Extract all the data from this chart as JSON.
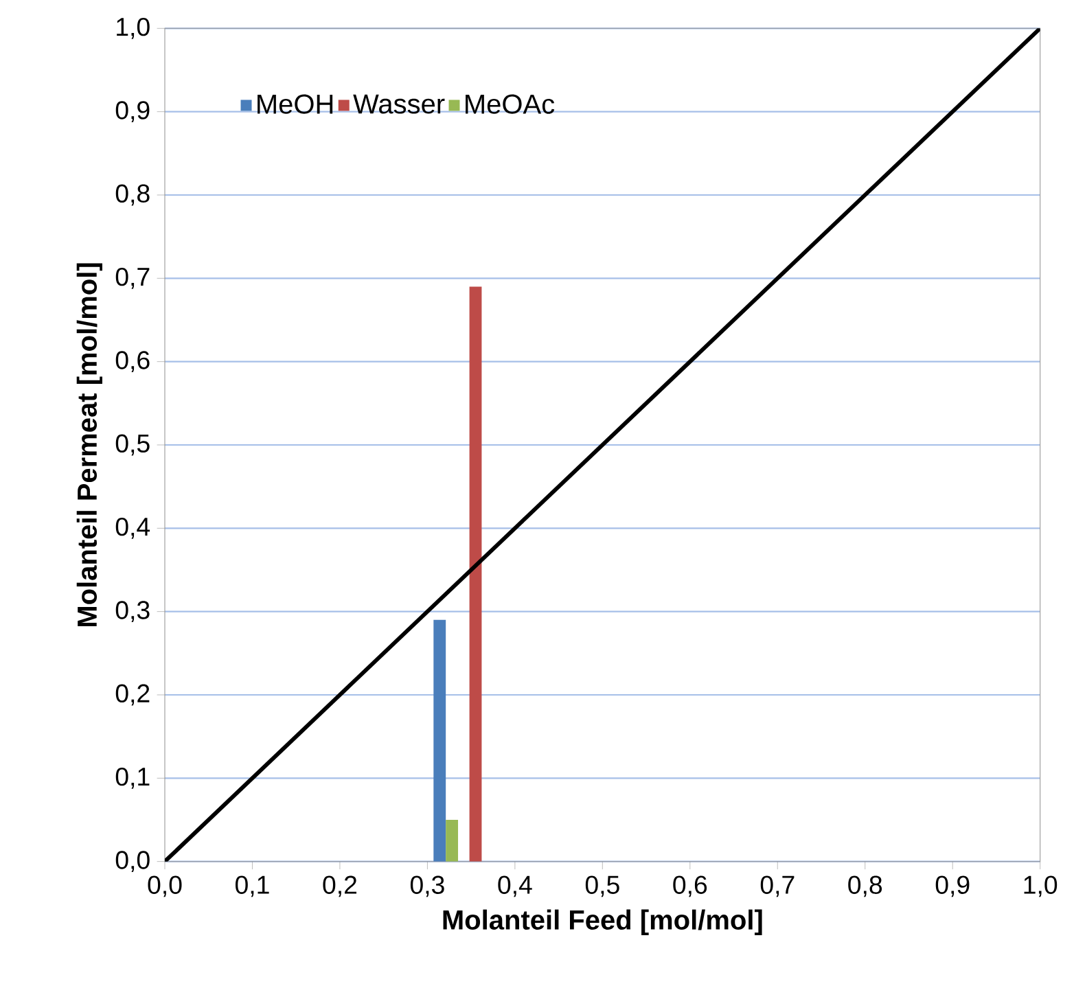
{
  "chart_data": {
    "type": "bar",
    "xlabel": "Molanteil Feed [mol/mol]",
    "ylabel": "Molanteil Permeat [mol/mol]",
    "xlim": [
      0,
      1
    ],
    "ylim": [
      0,
      1
    ],
    "xticks": [
      {
        "value": 0,
        "label": "0,0"
      },
      {
        "value": 0.1,
        "label": "0,1"
      },
      {
        "value": 0.2,
        "label": "0,2"
      },
      {
        "value": 0.3,
        "label": "0,3"
      },
      {
        "value": 0.4,
        "label": "0,4"
      },
      {
        "value": 0.5,
        "label": "0,5"
      },
      {
        "value": 0.6,
        "label": "0,6"
      },
      {
        "value": 0.7,
        "label": "0,7"
      },
      {
        "value": 0.8,
        "label": "0,8"
      },
      {
        "value": 0.9,
        "label": "0,9"
      },
      {
        "value": 1,
        "label": "1,0"
      }
    ],
    "yticks": [
      {
        "value": 0,
        "label": "0,0"
      },
      {
        "value": 0.1,
        "label": "0,1"
      },
      {
        "value": 0.2,
        "label": "0,2"
      },
      {
        "value": 0.3,
        "label": "0,3"
      },
      {
        "value": 0.4,
        "label": "0,4"
      },
      {
        "value": 0.5,
        "label": "0,5"
      },
      {
        "value": 0.6,
        "label": "0,6"
      },
      {
        "value": 0.7,
        "label": "0,7"
      },
      {
        "value": 0.8,
        "label": "0,8"
      },
      {
        "value": 0.9,
        "label": "0,9"
      },
      {
        "value": 1,
        "label": "1,0"
      }
    ],
    "grid": "y",
    "legend": "top left",
    "series": [
      {
        "name": "MeOH",
        "color": "#4a7ebb",
        "x": [
          0.314
        ],
        "values": [
          0.29
        ]
      },
      {
        "name": "Wasser",
        "color": "#be4b48",
        "x": [
          0.355
        ],
        "values": [
          0.69
        ]
      },
      {
        "name": "MeOAc",
        "color": "#98b954",
        "x": [
          0.328
        ],
        "values": [
          0.05
        ]
      },
      {
        "type": "line",
        "color": "#000000",
        "x": [
          0,
          1
        ],
        "values": [
          0,
          1
        ]
      }
    ]
  }
}
